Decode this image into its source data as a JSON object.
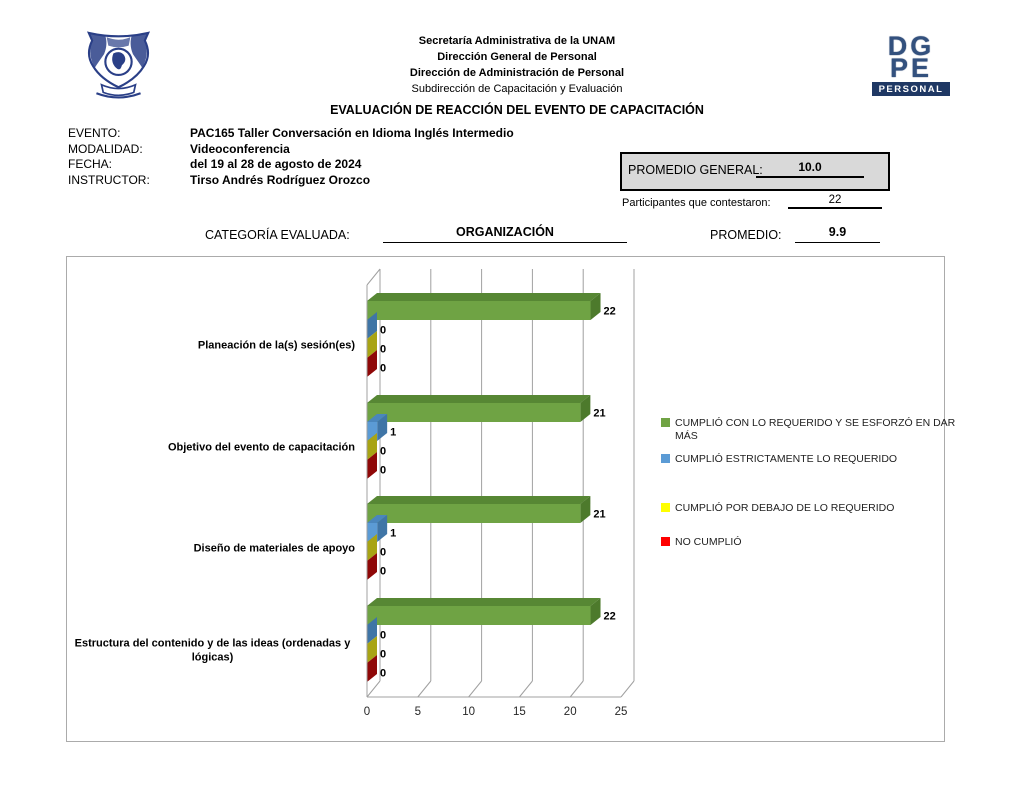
{
  "header": {
    "org_lines": [
      "Secretaría Administrativa de la UNAM",
      "Dirección General de Personal",
      "Dirección de Administración de Personal",
      "Subdirección de Capacitación y Evaluación"
    ],
    "title": "EVALUACIÓN DE REACCIÓN DEL EVENTO DE CAPACITACIÓN",
    "dgpe_logo": {
      "line1": "DG",
      "line2": "PE",
      "banner": "PERSONAL"
    }
  },
  "event_info": {
    "rows": [
      {
        "label": "EVENTO:",
        "value": "PAC165 Taller Conversación en Idioma  Inglés Intermedio"
      },
      {
        "label": "MODALIDAD:",
        "value": "Videoconferencia"
      },
      {
        "label": "FECHA:",
        "value": "del 19 al 28 de agosto de 2024"
      },
      {
        "label": "INSTRUCTOR:",
        "value": "Tirso Andrés Rodríguez Orozco"
      }
    ],
    "promedio_general": {
      "label": "PROMEDIO GENERAL:",
      "value": "10.0"
    },
    "participantes": {
      "label": "Participantes que contestaron:",
      "value": "22"
    }
  },
  "category_row": {
    "label": "CATEGORÍA EVALUADA:",
    "value": "ORGANIZACIÓN",
    "promedio_label": "PROMEDIO:",
    "promedio_value": "9.9"
  },
  "chart_data": {
    "type": "bar",
    "orientation": "horizontal",
    "style": "3d",
    "categories": [
      "Planeación de la(s) sesión(es)",
      "Objetivo del evento de capacitación",
      "Diseño de materiales de apoyo",
      "Estructura del contenido y de las ideas (ordenadas y lógicas)"
    ],
    "series": [
      {
        "name": "CUMPLIÓ CON LO REQUERIDO Y SE ESFORZÓ EN DAR MÁS",
        "color": "#6FA344",
        "color_top": "#578734",
        "color_side": "#4d7a2c",
        "legend_color": "#70A344",
        "values": [
          22,
          21,
          21,
          22
        ]
      },
      {
        "name": "CUMPLIÓ ESTRICTAMENTE LO REQUERIDO",
        "color": "#5B9BD5",
        "color_top": "#4a86bd",
        "color_side": "#3f75a6",
        "legend_color": "#5B9BD5",
        "values": [
          0,
          1,
          1,
          0
        ]
      },
      {
        "name": "CUMPLIÓ POR DEBAJO DE LO REQUERIDO",
        "color": "#DCD61F",
        "color_top": "#c0bb19",
        "color_side": "#a8a414",
        "legend_color": "#FFFF00",
        "values": [
          0,
          0,
          0,
          0
        ]
      },
      {
        "name": "NO CUMPLIÓ",
        "color": "#C00000",
        "color_top": "#a50b0b",
        "color_side": "#8f0808",
        "legend_color": "#FF0000",
        "values": [
          0,
          0,
          0,
          0
        ]
      }
    ],
    "xlim": [
      0,
      25
    ],
    "x_ticks": [
      0,
      5,
      10,
      15,
      20,
      25
    ],
    "legend_position": "right",
    "data_labels": true,
    "grid": true,
    "axis_color": "#a0a0a0"
  }
}
